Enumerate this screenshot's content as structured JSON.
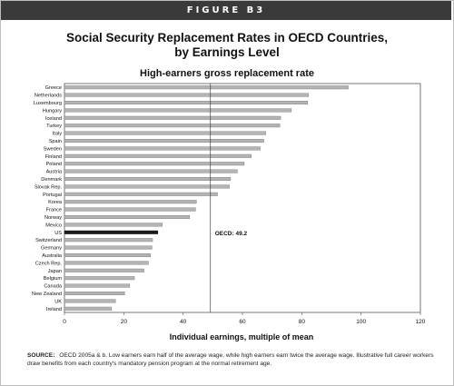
{
  "figure_label": "FIGURE B3",
  "source_label": "SOURCE:",
  "source_text": "OECD 2005a & b. Low earners earn half of the average wage, while high earners earn twice the average wage. Illustrative full career workers draw benefits from each country's mandatory pension program at the normal retirement age.",
  "colors": {
    "bar": "#b4b4b4",
    "highlight": "#1a1a1a",
    "header": "#3a3a3a"
  },
  "chart_data": {
    "type": "bar",
    "orientation": "horizontal",
    "title": "Social Security Replacement Rates in OECD Countries, by Earnings Level",
    "title_lines": [
      "Social Security Replacement Rates in OECD Countries,",
      "by Earnings Level"
    ],
    "subtitle": "High-earners gross replacement rate",
    "xlabel": "Individual earnings, multiple of mean",
    "xlim": [
      0,
      120
    ],
    "xticks": [
      0,
      20,
      40,
      60,
      80,
      100,
      120
    ],
    "grid": false,
    "highlight_category": "US",
    "reference_line": {
      "value": 49.2,
      "label": "OECD: 49.2"
    },
    "categories": [
      "Greece",
      "Netherlands",
      "Luxembourg",
      "Hungary",
      "Iceland",
      "Turkey",
      "Italy",
      "Spain",
      "Sweden",
      "Finland",
      "Poland",
      "Austria",
      "Denmark",
      "Slovak Rep.",
      "Portugal",
      "Korea",
      "France",
      "Norway",
      "Mexico",
      "US",
      "Switzerland",
      "Germany",
      "Australia",
      "Czech Rep.",
      "Japan",
      "Belgium",
      "Canada",
      "New Zealand",
      "UK",
      "Ireland"
    ],
    "values": [
      95.7,
      82.3,
      82.0,
      76.5,
      72.9,
      72.6,
      67.9,
      67.2,
      66.0,
      63.0,
      60.6,
      58.3,
      56.0,
      55.6,
      51.6,
      44.5,
      44.2,
      42.2,
      33.0,
      31.5,
      29.7,
      29.5,
      29.0,
      28.3,
      26.8,
      23.6,
      22.0,
      20.3,
      17.2,
      15.9
    ]
  }
}
